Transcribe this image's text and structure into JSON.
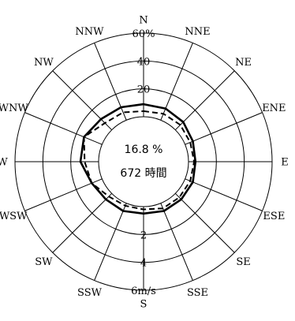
{
  "chart_data": {
    "type": "radar",
    "directions": [
      "N",
      "NNE",
      "NE",
      "ENE",
      "E",
      "ESE",
      "SE",
      "SSE",
      "S",
      "SSW",
      "SW",
      "WSW",
      "W",
      "WNW",
      "NW",
      "NNW"
    ],
    "frequency_axis": {
      "ticks": [
        "20",
        "40",
        "60%"
      ],
      "max": 60
    },
    "speed_axis": {
      "ticks": [
        "2",
        "4",
        "6m/s"
      ],
      "max": 6
    },
    "series": [
      {
        "style": "solid",
        "axis": "frequency",
        "values": [
          9,
          9,
          8,
          6,
          5,
          6,
          6,
          6,
          5,
          6,
          6,
          8,
          13,
          14,
          11,
          10
        ]
      },
      {
        "style": "dashed",
        "axis": "speed",
        "values": [
          0.4,
          0.5,
          0.5,
          0.4,
          0.4,
          0.4,
          0.4,
          0.4,
          0.2,
          0.2,
          0.3,
          0.8,
          1.0,
          1.4,
          0.7,
          0.6
        ]
      }
    ],
    "calm": {
      "percent": "16.8 %",
      "hours": "672 時間"
    }
  }
}
